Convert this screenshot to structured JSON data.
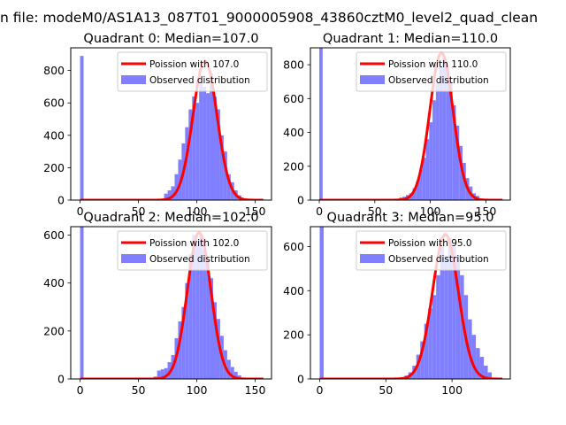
{
  "figure": {
    "suptitle": "n file: modeM0/AS1A13_087T01_9000005908_43860cztM0_level2_quad_clean"
  },
  "colors": {
    "observed": "#7f7fff",
    "poisson": "#ff0000"
  },
  "chart_data": [
    {
      "type": "bar",
      "title": "Quadrant 0: Median=107.0",
      "median": 107.0,
      "xlim": [
        -8,
        164
      ],
      "ylim": [
        0,
        940
      ],
      "xticks": [
        0,
        50,
        100,
        150
      ],
      "yticks": [
        0,
        200,
        400,
        600,
        800
      ],
      "legend_placement": "upper right",
      "series": [
        {
          "name": "Poission with 107.0",
          "kind": "line",
          "mean": 107.0,
          "peak": 860,
          "x_range": [
            0,
            157
          ]
        },
        {
          "name": "Observed distribution",
          "kind": "histogram",
          "bins": [
            {
              "x": 0,
              "y": 890
            },
            {
              "x": 72,
              "y": 40
            },
            {
              "x": 75,
              "y": 60
            },
            {
              "x": 78,
              "y": 85
            },
            {
              "x": 81,
              "y": 160
            },
            {
              "x": 84,
              "y": 250
            },
            {
              "x": 87,
              "y": 350
            },
            {
              "x": 90,
              "y": 450
            },
            {
              "x": 93,
              "y": 560
            },
            {
              "x": 96,
              "y": 640
            },
            {
              "x": 99,
              "y": 600
            },
            {
              "x": 102,
              "y": 720
            },
            {
              "x": 105,
              "y": 700
            },
            {
              "x": 108,
              "y": 660
            },
            {
              "x": 111,
              "y": 780
            },
            {
              "x": 114,
              "y": 640
            },
            {
              "x": 117,
              "y": 560
            },
            {
              "x": 120,
              "y": 400
            },
            {
              "x": 123,
              "y": 300
            },
            {
              "x": 126,
              "y": 160
            },
            {
              "x": 129,
              "y": 110
            },
            {
              "x": 132,
              "y": 60
            },
            {
              "x": 135,
              "y": 30
            }
          ]
        }
      ]
    },
    {
      "type": "bar",
      "title": "Quadrant 1: Median=110.0",
      "median": 110.0,
      "xlim": [
        -8,
        172
      ],
      "ylim": [
        0,
        900
      ],
      "xticks": [
        0,
        50,
        100,
        150
      ],
      "yticks": [
        0,
        200,
        400,
        600,
        800
      ],
      "legend_placement": "upper right",
      "series": [
        {
          "name": "Poission with 110.0",
          "kind": "line",
          "mean": 110.0,
          "peak": 870,
          "x_range": [
            0,
            165
          ]
        },
        {
          "name": "Observed distribution",
          "kind": "histogram",
          "bins": [
            {
              "x": 0,
              "y": 900
            },
            {
              "x": 72,
              "y": 15
            },
            {
              "x": 75,
              "y": 20
            },
            {
              "x": 78,
              "y": 30
            },
            {
              "x": 81,
              "y": 40
            },
            {
              "x": 84,
              "y": 70
            },
            {
              "x": 87,
              "y": 110
            },
            {
              "x": 90,
              "y": 180
            },
            {
              "x": 93,
              "y": 250
            },
            {
              "x": 96,
              "y": 360
            },
            {
              "x": 99,
              "y": 460
            },
            {
              "x": 102,
              "y": 590
            },
            {
              "x": 105,
              "y": 690
            },
            {
              "x": 108,
              "y": 790
            },
            {
              "x": 111,
              "y": 850
            },
            {
              "x": 114,
              "y": 800
            },
            {
              "x": 117,
              "y": 700
            },
            {
              "x": 120,
              "y": 560
            },
            {
              "x": 123,
              "y": 440
            },
            {
              "x": 126,
              "y": 320
            },
            {
              "x": 129,
              "y": 220
            },
            {
              "x": 132,
              "y": 130
            },
            {
              "x": 135,
              "y": 80
            },
            {
              "x": 138,
              "y": 40
            },
            {
              "x": 141,
              "y": 25
            }
          ]
        }
      ]
    },
    {
      "type": "bar",
      "title": "Quadrant 2: Median=102.0",
      "median": 102.0,
      "xlim": [
        -8,
        164
      ],
      "ylim": [
        0,
        635
      ],
      "xticks": [
        0,
        50,
        100,
        150
      ],
      "yticks": [
        0,
        200,
        400,
        600
      ],
      "legend_placement": "upper right",
      "series": [
        {
          "name": "Poission with 102.0",
          "kind": "line",
          "mean": 102.0,
          "peak": 610,
          "x_range": [
            0,
            157
          ]
        },
        {
          "name": "Observed distribution",
          "kind": "histogram",
          "bins": [
            {
              "x": 0,
              "y": 640
            },
            {
              "x": 63,
              "y": 10
            },
            {
              "x": 66,
              "y": 35
            },
            {
              "x": 69,
              "y": 40
            },
            {
              "x": 72,
              "y": 45
            },
            {
              "x": 75,
              "y": 70
            },
            {
              "x": 78,
              "y": 100
            },
            {
              "x": 81,
              "y": 170
            },
            {
              "x": 84,
              "y": 240
            },
            {
              "x": 87,
              "y": 300
            },
            {
              "x": 90,
              "y": 400
            },
            {
              "x": 93,
              "y": 520
            },
            {
              "x": 96,
              "y": 600
            },
            {
              "x": 99,
              "y": 560
            },
            {
              "x": 102,
              "y": 600
            },
            {
              "x": 105,
              "y": 540
            },
            {
              "x": 108,
              "y": 500
            },
            {
              "x": 111,
              "y": 420
            },
            {
              "x": 114,
              "y": 320
            },
            {
              "x": 117,
              "y": 250
            },
            {
              "x": 120,
              "y": 180
            },
            {
              "x": 123,
              "y": 120
            },
            {
              "x": 126,
              "y": 80
            },
            {
              "x": 129,
              "y": 50
            },
            {
              "x": 132,
              "y": 30
            },
            {
              "x": 135,
              "y": 15
            }
          ]
        }
      ]
    },
    {
      "type": "bar",
      "title": "Quadrant 3: Median=95.0",
      "median": 95.0,
      "xlim": [
        -7,
        144
      ],
      "ylim": [
        0,
        690
      ],
      "xticks": [
        0,
        50,
        100
      ],
      "yticks": [
        0,
        200,
        400,
        600
      ],
      "legend_placement": "upper right",
      "series": [
        {
          "name": "Poission with 95.0",
          "kind": "line",
          "mean": 95.0,
          "peak": 655,
          "x_range": [
            0,
            138
          ]
        },
        {
          "name": "Observed distribution",
          "kind": "histogram",
          "bins": [
            {
              "x": 0,
              "y": 690
            },
            {
              "x": 64,
              "y": 15
            },
            {
              "x": 67,
              "y": 30
            },
            {
              "x": 70,
              "y": 60
            },
            {
              "x": 73,
              "y": 110
            },
            {
              "x": 76,
              "y": 170
            },
            {
              "x": 79,
              "y": 250
            },
            {
              "x": 82,
              "y": 320
            },
            {
              "x": 85,
              "y": 380
            },
            {
              "x": 88,
              "y": 470
            },
            {
              "x": 91,
              "y": 600
            },
            {
              "x": 94,
              "y": 560
            },
            {
              "x": 97,
              "y": 640
            },
            {
              "x": 100,
              "y": 600
            },
            {
              "x": 103,
              "y": 560
            },
            {
              "x": 106,
              "y": 470
            },
            {
              "x": 109,
              "y": 380
            },
            {
              "x": 112,
              "y": 270
            },
            {
              "x": 115,
              "y": 200
            },
            {
              "x": 118,
              "y": 140
            },
            {
              "x": 121,
              "y": 100
            },
            {
              "x": 124,
              "y": 60
            },
            {
              "x": 127,
              "y": 30
            }
          ]
        }
      ]
    }
  ]
}
